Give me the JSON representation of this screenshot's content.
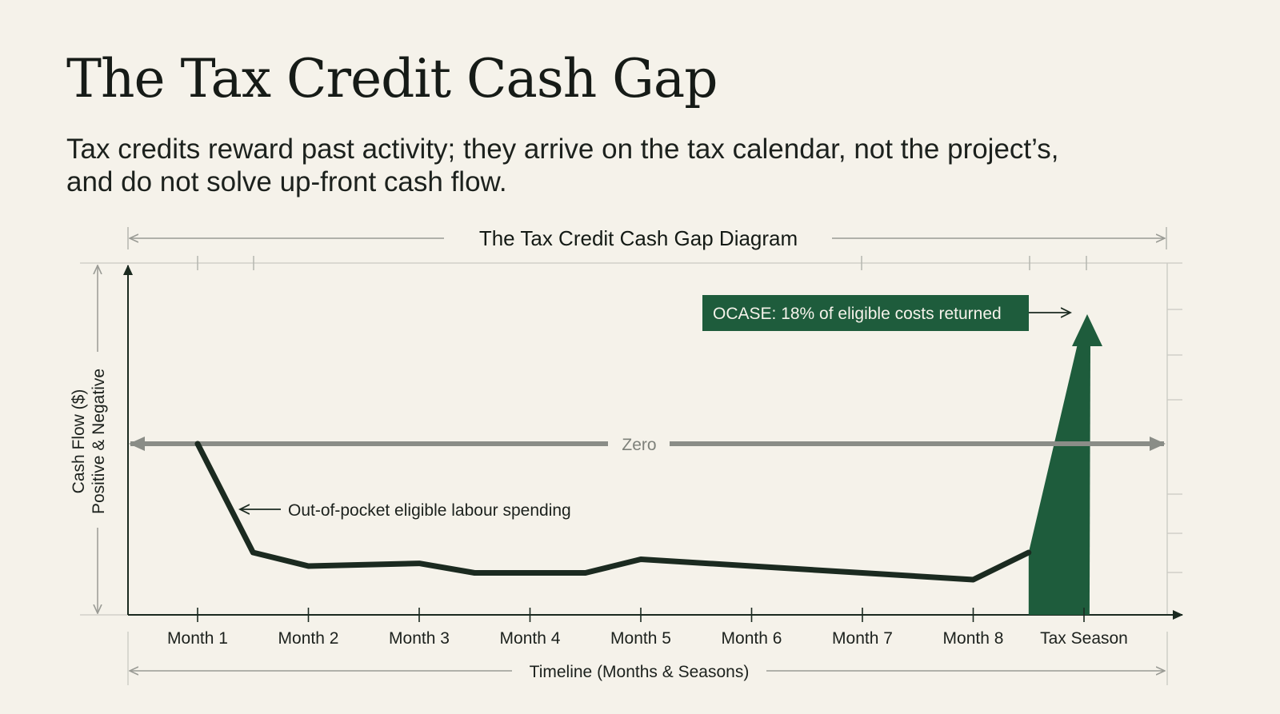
{
  "title": "The Tax Credit Cash Gap",
  "subtitle": {
    "line1": "Tax credits reward past activity; they arrive on the tax calendar, not the project’s,",
    "line2": "and do not solve up-front cash flow."
  },
  "diagram": {
    "heading": "The Tax Credit Cash Gap Diagram",
    "y_axis_label_1": "Cash Flow ($)",
    "y_axis_label_2": "Positive & Negative",
    "x_axis_label": "Timeline (Months & Seasons)",
    "zero_label": "Zero",
    "annotation_spending": "Out-of-pocket eligible labour spending",
    "annotation_credit": "OCASE: 18% of eligible costs returned",
    "colors": {
      "background": "#f5f2ea",
      "line": "#1b2a20",
      "credit_green": "#1e5c3c",
      "zero_line": "#8a8d87",
      "guide": "#b5b6b0"
    }
  },
  "chart_data": {
    "type": "line",
    "categories": [
      "Month 1",
      "Month 2",
      "Month 3",
      "Month 4",
      "Month 5",
      "Month 6",
      "Month 7",
      "Month 8",
      "Tax Season"
    ],
    "x_tick_labels": [
      "Month 1",
      "Month 2",
      "Month 3",
      "Month 4",
      "Month 5",
      "Month 6",
      "Month 7",
      "Month 8",
      "Tax Season"
    ],
    "xlabel": "Timeline (Months & Seasons)",
    "ylabel": "Cash Flow ($)",
    "ylabel_secondary": "Positive & Negative",
    "title": "The Tax Credit Cash Gap Diagram",
    "units": "relative (zero = 0, trough ≈ -1, credit peak ≈ +1)",
    "ylim": [
      -1.25,
      1.0
    ],
    "grid": false,
    "series": [
      {
        "x": [
          1,
          1.5,
          2,
          3,
          3.5,
          4,
          4.5,
          5,
          6,
          7,
          8,
          8.5
        ],
        "y": [
          0,
          -0.8,
          -0.9,
          -0.88,
          -0.95,
          -0.95,
          -0.95,
          -0.85,
          -0.9,
          -0.95,
          -1.0,
          -0.8
        ]
      }
    ],
    "credit_spike": {
      "label": "OCASE: 18% of eligible costs returned",
      "x_start": 8.5,
      "x_peak": 9.0,
      "x_end": 9.05,
      "y_base": -1.25,
      "y_peak": 1.0
    },
    "annotations": [
      {
        "text": "Zero",
        "y": 0
      },
      {
        "text": "Out-of-pocket eligible labour spending",
        "x": 1.5,
        "y": -0.45
      }
    ]
  }
}
